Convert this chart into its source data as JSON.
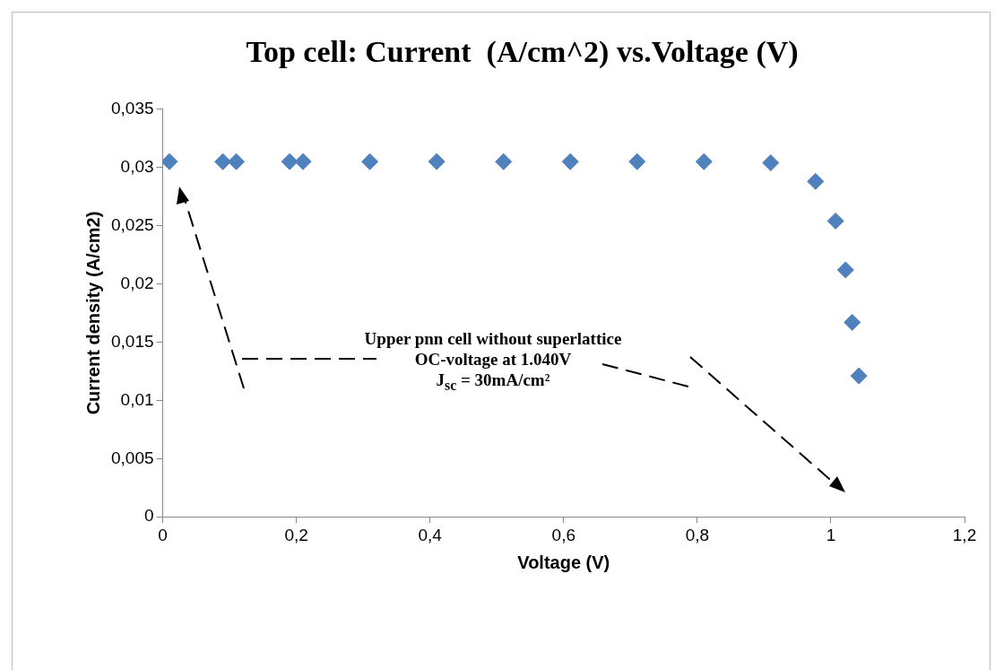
{
  "chart_data": {
    "type": "scatter",
    "title": "Top cell: Current  (A/cm^2) vs.Voltage (V)",
    "xlabel": "Voltage (V)",
    "ylabel": "Current density (A/cm2)",
    "x": [
      0.01,
      0.09,
      0.11,
      0.19,
      0.21,
      0.31,
      0.41,
      0.51,
      0.61,
      0.71,
      0.81,
      0.91,
      0.977,
      1.007,
      1.022,
      1.032,
      1.042
    ],
    "series": [
      {
        "color": "#4f81bd",
        "values": [
          0.0305,
          0.0305,
          0.0305,
          0.0305,
          0.0305,
          0.0305,
          0.0305,
          0.0305,
          0.0305,
          0.0305,
          0.0305,
          0.0304,
          0.0288,
          0.0254,
          0.0212,
          0.0167,
          0.0121
        ]
      }
    ],
    "xlim": [
      0,
      1.2
    ],
    "ylim": [
      0,
      0.035
    ],
    "xticks": [
      0,
      {
        "value": 0.2,
        "label": "0,2"
      },
      {
        "value": 0.4,
        "label": "0,4"
      },
      {
        "value": 0.6,
        "label": "0,6"
      },
      {
        "value": 0.8,
        "label": "0,8"
      },
      1,
      {
        "value": 1.2,
        "label": "1,2"
      }
    ],
    "yticks": [
      0,
      {
        "value": 0.005,
        "label": "0,005"
      },
      {
        "value": 0.01,
        "label": "0,01"
      },
      {
        "value": 0.015,
        "label": "0,015"
      },
      {
        "value": 0.02,
        "label": "0,02"
      },
      {
        "value": 0.025,
        "label": "0,025"
      },
      {
        "value": 0.03,
        "label": "0,03"
      },
      {
        "value": 0.035,
        "label": "0,035"
      }
    ],
    "annotations": [
      "Upper pnn cell without superlattice",
      "OC-voltage at 1.040V",
      "J$_{sc}$ = 30mA/cm²"
    ],
    "grid": false,
    "legend": false,
    "marker": "diamond"
  }
}
